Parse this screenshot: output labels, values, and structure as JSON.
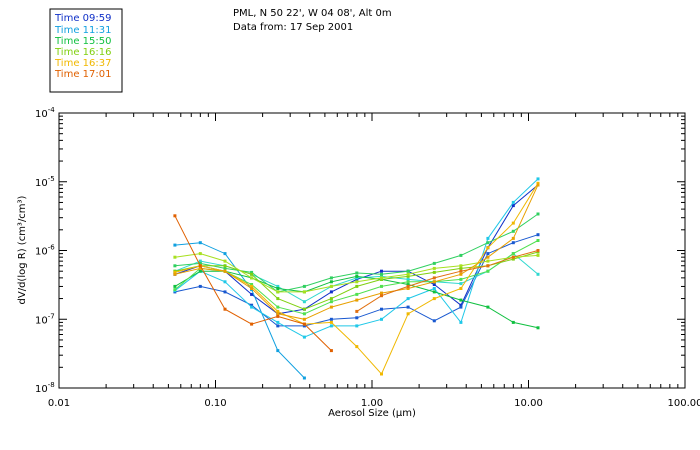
{
  "chart_data": {
    "type": "line",
    "title": "PML, N 50 22', W 04 08', Alt 0m",
    "subtitle": "Data from: 17 Sep 2001",
    "xlabel": "Aerosol Size (μm)",
    "ylabel": "dV/d(log R) (cm³/cm³)",
    "xscale": "log",
    "yscale": "log",
    "xlim": [
      0.01,
      100
    ],
    "ylim": [
      1e-08,
      0.0001
    ],
    "x_ticks": [
      "0.01",
      "0.10",
      "1.00",
      "10.00",
      "100.00"
    ],
    "y_ticks": [
      {
        "base": "10",
        "exp": "-8"
      },
      {
        "base": "10",
        "exp": "-7"
      },
      {
        "base": "10",
        "exp": "-6"
      },
      {
        "base": "10",
        "exp": "-5"
      },
      {
        "base": "10",
        "exp": "-4"
      }
    ],
    "legend": [
      {
        "label": "Time 09:59",
        "color": "#1030c8"
      },
      {
        "label": "Time 11:31",
        "color": "#10a0e0"
      },
      {
        "label": "Time 15:50",
        "color": "#10c040"
      },
      {
        "label": "Time 16:16",
        "color": "#80d010"
      },
      {
        "label": "Time 16:37",
        "color": "#f0b800"
      },
      {
        "label": "Time 17:01",
        "color": "#e06000"
      }
    ],
    "x": [
      0.055,
      0.08,
      0.115,
      0.17,
      0.25,
      0.37,
      0.55,
      0.8,
      1.15,
      1.7,
      2.5,
      3.7,
      5.5,
      8,
      11.5
    ],
    "series": [
      {
        "name": "s1",
        "color": "#1030c8",
        "values": [
          4.5e-07,
          6e-07,
          5e-07,
          2.3e-07,
          1.2e-07,
          1.4e-07,
          2.5e-07,
          3.8e-07,
          5e-07,
          5e-07,
          3.2e-07,
          1.6e-07,
          1.1e-06,
          4.5e-06,
          9e-06
        ]
      },
      {
        "name": "s2",
        "color": "#1858d0",
        "values": [
          2.5e-07,
          3e-07,
          2.5e-07,
          1.6e-07,
          8e-08,
          8e-08,
          1e-07,
          1.05e-07,
          1.4e-07,
          1.5e-07,
          9.5e-08,
          1.5e-07,
          9e-07,
          1.3e-06,
          1.7e-06
        ]
      },
      {
        "name": "s3",
        "color": "#10a0e0",
        "values": [
          1.2e-06,
          1.3e-06,
          9e-07,
          2.7e-07,
          3.5e-08,
          1.4e-08,
          null,
          null,
          null,
          null,
          null,
          null,
          null,
          null,
          null
        ]
      },
      {
        "name": "s4",
        "color": "#20c8e8",
        "values": [
          2.6e-07,
          5e-07,
          3.5e-07,
          1.5e-07,
          9e-08,
          5.5e-08,
          8e-08,
          8e-08,
          1e-07,
          2e-07,
          2.8e-07,
          9e-08,
          1.5e-06,
          5e-06,
          1.1e-05
        ]
      },
      {
        "name": "s5",
        "color": "#30d8d0",
        "values": [
          5e-07,
          7e-07,
          6e-07,
          4.5e-07,
          3e-07,
          1.8e-07,
          3e-07,
          4e-07,
          4.2e-07,
          3.8e-07,
          3.5e-07,
          3.3e-07,
          5e-07,
          9e-07,
          4.5e-07
        ]
      },
      {
        "name": "s6",
        "color": "#10c040",
        "values": [
          3e-07,
          5e-07,
          5e-07,
          4e-07,
          2.8e-07,
          2.5e-07,
          3.5e-07,
          4.2e-07,
          3.8e-07,
          3.2e-07,
          2.5e-07,
          1.9e-07,
          1.5e-07,
          9e-08,
          7.5e-08
        ]
      },
      {
        "name": "s7",
        "color": "#30d060",
        "values": [
          6e-07,
          6.5e-07,
          5.5e-07,
          4.8e-07,
          2.5e-07,
          3e-07,
          4e-07,
          4.7e-07,
          4.5e-07,
          5e-07,
          6.5e-07,
          8.5e-07,
          1.3e-06,
          1.9e-06,
          3.4e-06
        ]
      },
      {
        "name": "s8",
        "color": "#50e050",
        "values": [
          2.7e-07,
          5.5e-07,
          5e-07,
          3.2e-07,
          1.5e-07,
          1.2e-07,
          1.8e-07,
          2.3e-07,
          3e-07,
          3.5e-07,
          3.5e-07,
          3.8e-07,
          5e-07,
          9e-07,
          1.4e-06
        ]
      },
      {
        "name": "s9",
        "color": "#80d010",
        "values": [
          5e-07,
          6e-07,
          6e-07,
          4.5e-07,
          2e-07,
          1.4e-07,
          2e-07,
          3e-07,
          3.8e-07,
          4.2e-07,
          4.8e-07,
          5.5e-07,
          6e-07,
          7.5e-07,
          9.5e-07
        ]
      },
      {
        "name": "s10",
        "color": "#a8e020",
        "values": [
          8e-07,
          9e-07,
          7e-07,
          4e-07,
          2.5e-07,
          2.5e-07,
          3e-07,
          3.5e-07,
          4e-07,
          4.5e-07,
          5.5e-07,
          6e-07,
          7e-07,
          8e-07,
          8.5e-07
        ]
      },
      {
        "name": "s11",
        "color": "#f0b800",
        "values": [
          4.8e-07,
          6e-07,
          5e-07,
          3e-07,
          1.3e-07,
          8.5e-08,
          9e-08,
          4e-08,
          1.6e-08,
          1.2e-07,
          2e-07,
          2.8e-07,
          1.1e-06,
          2.5e-06,
          9.5e-06
        ]
      },
      {
        "name": "s12",
        "color": "#e8a000",
        "values": [
          4.5e-07,
          5.5e-07,
          5e-07,
          2.8e-07,
          1.2e-07,
          1e-07,
          1.5e-07,
          1.9e-07,
          2.4e-07,
          2.8e-07,
          3.5e-07,
          4.5e-07,
          8e-07,
          1.5e-06,
          9e-06
        ]
      },
      {
        "name": "s13",
        "color": "#e06000",
        "values": [
          3.2e-06,
          6e-07,
          1.4e-07,
          8.5e-08,
          1.1e-07,
          8.5e-08,
          3.5e-08,
          null,
          null,
          null,
          null,
          null,
          null,
          null,
          null
        ]
      },
      {
        "name": "s14",
        "color": "#e07010",
        "values": [
          null,
          null,
          null,
          null,
          null,
          null,
          null,
          1.3e-07,
          2.2e-07,
          3e-07,
          4e-07,
          5e-07,
          6e-07,
          8e-07,
          1e-06
        ]
      }
    ]
  }
}
